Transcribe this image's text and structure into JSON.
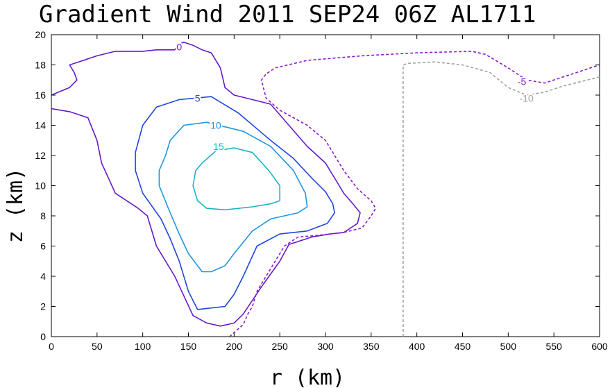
{
  "chart_data": {
    "type": "contour",
    "title": "Gradient Wind 2011 SEP24 06Z  AL1711",
    "xlabel": "r (km)",
    "ylabel": "z (km)",
    "xlim": [
      0,
      600
    ],
    "ylim": [
      0,
      20
    ],
    "xticks": [
      0,
      50,
      100,
      150,
      200,
      250,
      300,
      350,
      400,
      450,
      500,
      550,
      600
    ],
    "yticks": [
      0,
      2,
      4,
      6,
      8,
      10,
      12,
      14,
      16,
      18,
      20
    ],
    "contours": [
      {
        "level": 15,
        "label": "15",
        "color": "#19b4c8",
        "dashed": false,
        "label_pos": [
          183,
          12.6
        ],
        "points": [
          [
            165,
            11.5
          ],
          [
            180,
            12.3
          ],
          [
            200,
            12.5
          ],
          [
            220,
            12.2
          ],
          [
            238,
            11.0
          ],
          [
            250,
            10.0
          ],
          [
            250,
            9.0
          ],
          [
            240,
            8.8
          ],
          [
            220,
            8.6
          ],
          [
            190,
            8.4
          ],
          [
            170,
            8.5
          ],
          [
            160,
            9.0
          ],
          [
            155,
            10.0
          ],
          [
            158,
            11.0
          ],
          [
            165,
            11.5
          ]
        ]
      },
      {
        "level": 10,
        "label": "10",
        "color": "#1e96dc",
        "dashed": false,
        "label_pos": [
          180,
          14.0
        ],
        "points": [
          [
            125,
            12.0
          ],
          [
            130,
            13.0
          ],
          [
            145,
            14.0
          ],
          [
            170,
            14.2
          ],
          [
            210,
            13.6
          ],
          [
            240,
            12.6
          ],
          [
            265,
            11.0
          ],
          [
            278,
            9.5
          ],
          [
            280,
            8.6
          ],
          [
            270,
            8.2
          ],
          [
            240,
            7.8
          ],
          [
            220,
            7.0
          ],
          [
            200,
            5.5
          ],
          [
            190,
            4.7
          ],
          [
            175,
            4.3
          ],
          [
            165,
            4.3
          ],
          [
            150,
            5.5
          ],
          [
            140,
            6.8
          ],
          [
            128,
            8.5
          ],
          [
            118,
            10.0
          ],
          [
            118,
            11.0
          ],
          [
            125,
            12.0
          ]
        ]
      },
      {
        "level": 5,
        "label": "5",
        "color": "#1e46dc",
        "dashed": false,
        "label_pos": [
          160,
          15.8
        ],
        "points": [
          [
            92,
            12.2
          ],
          [
            100,
            14.0
          ],
          [
            115,
            15.2
          ],
          [
            140,
            15.7
          ],
          [
            175,
            15.9
          ],
          [
            205,
            14.8
          ],
          [
            240,
            13.0
          ],
          [
            265,
            11.8
          ],
          [
            285,
            10.5
          ],
          [
            300,
            9.6
          ],
          [
            308,
            8.8
          ],
          [
            310,
            8.2
          ],
          [
            302,
            7.5
          ],
          [
            280,
            7.0
          ],
          [
            250,
            6.8
          ],
          [
            225,
            6.0
          ],
          [
            210,
            4.0
          ],
          [
            200,
            2.8
          ],
          [
            190,
            2.0
          ],
          [
            175,
            1.9
          ],
          [
            160,
            1.8
          ],
          [
            150,
            3.0
          ],
          [
            140,
            5.0
          ],
          [
            130,
            6.5
          ],
          [
            120,
            7.8
          ],
          [
            100,
            9.5
          ],
          [
            92,
            11.0
          ],
          [
            92,
            12.2
          ]
        ]
      },
      {
        "level": 0,
        "label": "0",
        "color": "#6419c8",
        "dashed": false,
        "label_pos": [
          140,
          19.2
        ],
        "points": [
          [
            0,
            16.0
          ],
          [
            20,
            16.5
          ],
          [
            28,
            17.0
          ],
          [
            25,
            17.5
          ],
          [
            20,
            18.0
          ],
          [
            30,
            18.2
          ],
          [
            50,
            18.6
          ],
          [
            70,
            18.9
          ],
          [
            100,
            18.9
          ],
          [
            115,
            19.0
          ],
          [
            135,
            19.0
          ],
          [
            140,
            19.4
          ],
          [
            145,
            19.5
          ],
          [
            155,
            19.3
          ],
          [
            165,
            19.0
          ],
          [
            175,
            18.8
          ],
          [
            185,
            17.8
          ],
          [
            190,
            16.5
          ],
          [
            200,
            16.0
          ],
          [
            220,
            15.7
          ],
          [
            240,
            15.4
          ],
          [
            260,
            14.0
          ],
          [
            280,
            12.6
          ],
          [
            300,
            11.5
          ],
          [
            310,
            10.5
          ],
          [
            320,
            9.5
          ],
          [
            330,
            8.8
          ],
          [
            338,
            8.2
          ],
          [
            335,
            7.5
          ],
          [
            320,
            6.9
          ],
          [
            305,
            6.8
          ],
          [
            285,
            6.6
          ],
          [
            260,
            6.1
          ],
          [
            250,
            5.0
          ],
          [
            230,
            3.3
          ],
          [
            210,
            1.5
          ],
          [
            200,
            0.9
          ],
          [
            185,
            0.7
          ],
          [
            170,
            0.9
          ],
          [
            155,
            1.4
          ],
          [
            135,
            4.0
          ],
          [
            115,
            6.0
          ],
          [
            105,
            8.0
          ],
          [
            95,
            8.5
          ],
          [
            70,
            9.5
          ],
          [
            55,
            11.5
          ],
          [
            50,
            13.0
          ],
          [
            40,
            14.5
          ],
          [
            20,
            14.9
          ],
          [
            0,
            15.1
          ]
        ]
      },
      {
        "level": -5,
        "label": "-5",
        "color": "#8c19c8",
        "dashed": true,
        "label_pos": [
          515,
          16.9
        ],
        "points": [
          [
            195,
            0
          ],
          [
            210,
            0.8
          ],
          [
            215,
            1.5
          ],
          [
            220,
            2.0
          ],
          [
            225,
            3.0
          ],
          [
            235,
            4.0
          ],
          [
            245,
            5.0
          ],
          [
            255,
            6.0
          ],
          [
            270,
            6.6
          ],
          [
            290,
            6.7
          ],
          [
            305,
            6.8
          ],
          [
            320,
            6.9
          ],
          [
            340,
            7.2
          ],
          [
            350,
            8.0
          ],
          [
            355,
            8.5
          ],
          [
            350,
            9.0
          ],
          [
            335,
            9.8
          ],
          [
            320,
            11.0
          ],
          [
            310,
            12.0
          ],
          [
            300,
            13.0
          ],
          [
            280,
            14.0
          ],
          [
            250,
            15.0
          ],
          [
            235,
            15.8
          ],
          [
            230,
            17.0
          ],
          [
            235,
            17.4
          ],
          [
            245,
            17.8
          ],
          [
            280,
            18.3
          ],
          [
            340,
            18.6
          ],
          [
            400,
            18.8
          ],
          [
            460,
            18.9
          ],
          [
            475,
            18.7
          ],
          [
            500,
            17.8
          ],
          [
            520,
            17.0
          ],
          [
            540,
            16.8
          ],
          [
            560,
            17.2
          ],
          [
            580,
            17.6
          ],
          [
            600,
            18.0
          ]
        ]
      },
      {
        "level": -10,
        "label": "-10",
        "color": "#a0a0a0",
        "dashed": true,
        "label_pos": [
          520,
          15.8
        ],
        "points": [
          [
            385,
            0
          ],
          [
            385,
            18.0
          ],
          [
            390,
            18.1
          ],
          [
            420,
            18.2
          ],
          [
            450,
            18.0
          ],
          [
            480,
            17.5
          ],
          [
            500,
            16.5
          ],
          [
            520,
            16.0
          ],
          [
            540,
            16.2
          ],
          [
            560,
            16.6
          ],
          [
            580,
            16.9
          ],
          [
            600,
            17.2
          ]
        ]
      }
    ]
  }
}
